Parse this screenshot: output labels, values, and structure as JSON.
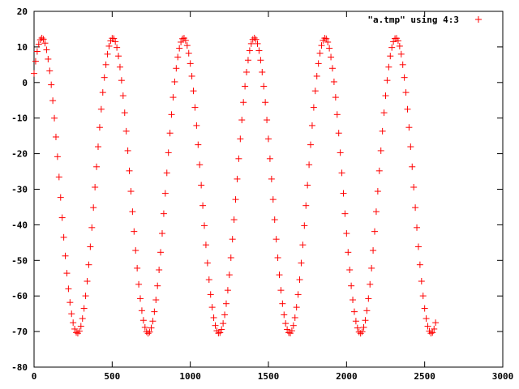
{
  "chart_data": {
    "type": "scatter",
    "title": "",
    "xlabel": "",
    "ylabel": "",
    "xlim": [
      0,
      3000
    ],
    "ylim": [
      -80,
      20
    ],
    "x_ticks": [
      "0",
      "500",
      "1000",
      "1500",
      "2000",
      "2500",
      "3000"
    ],
    "y_ticks": [
      "20",
      "10",
      "0",
      "-10",
      "-20",
      "-30",
      "-40",
      "-50",
      "-60",
      "-70",
      "-80"
    ],
    "grid": false,
    "legend_position": "top-right",
    "marker": "plus",
    "series": [
      {
        "name": "\"a.tmp\" using 4:3",
        "color": "#ff0000",
        "model": {
          "x_start": 0,
          "x_end": 2570,
          "x_step": 10,
          "offset": -29,
          "amplitude": 41.5,
          "period": 453,
          "peak_x": 51
        },
        "points": [
          [
            0,
            2
          ],
          [
            51,
            12.5
          ],
          [
            100,
            3
          ],
          [
            175,
            -40
          ],
          [
            250,
            -65
          ],
          [
            278,
            -70.5
          ],
          [
            330,
            -63
          ],
          [
            400,
            -30
          ],
          [
            465,
            5
          ],
          [
            504,
            12.5
          ],
          [
            560,
            2
          ],
          [
            650,
            -45
          ],
          [
            731,
            -70.5
          ],
          [
            800,
            -58
          ],
          [
            880,
            -15
          ],
          [
            957,
            12.5
          ],
          [
            1050,
            -5
          ],
          [
            1130,
            -55
          ],
          [
            1184,
            -70.5
          ],
          [
            1260,
            -45
          ],
          [
            1340,
            0
          ],
          [
            1410,
            12.5
          ],
          [
            1500,
            -10
          ],
          [
            1580,
            -60
          ],
          [
            1637,
            -70.5
          ],
          [
            1720,
            -38
          ],
          [
            1800,
            5
          ],
          [
            1863,
            12.5
          ],
          [
            1950,
            -10
          ],
          [
            2030,
            -60
          ],
          [
            2090,
            -70.5
          ],
          [
            2170,
            -40
          ],
          [
            2250,
            3
          ],
          [
            2316,
            12.5
          ],
          [
            2400,
            -15
          ],
          [
            2480,
            -63
          ],
          [
            2543,
            -70.5
          ],
          [
            2570,
            -69
          ]
        ]
      }
    ]
  }
}
